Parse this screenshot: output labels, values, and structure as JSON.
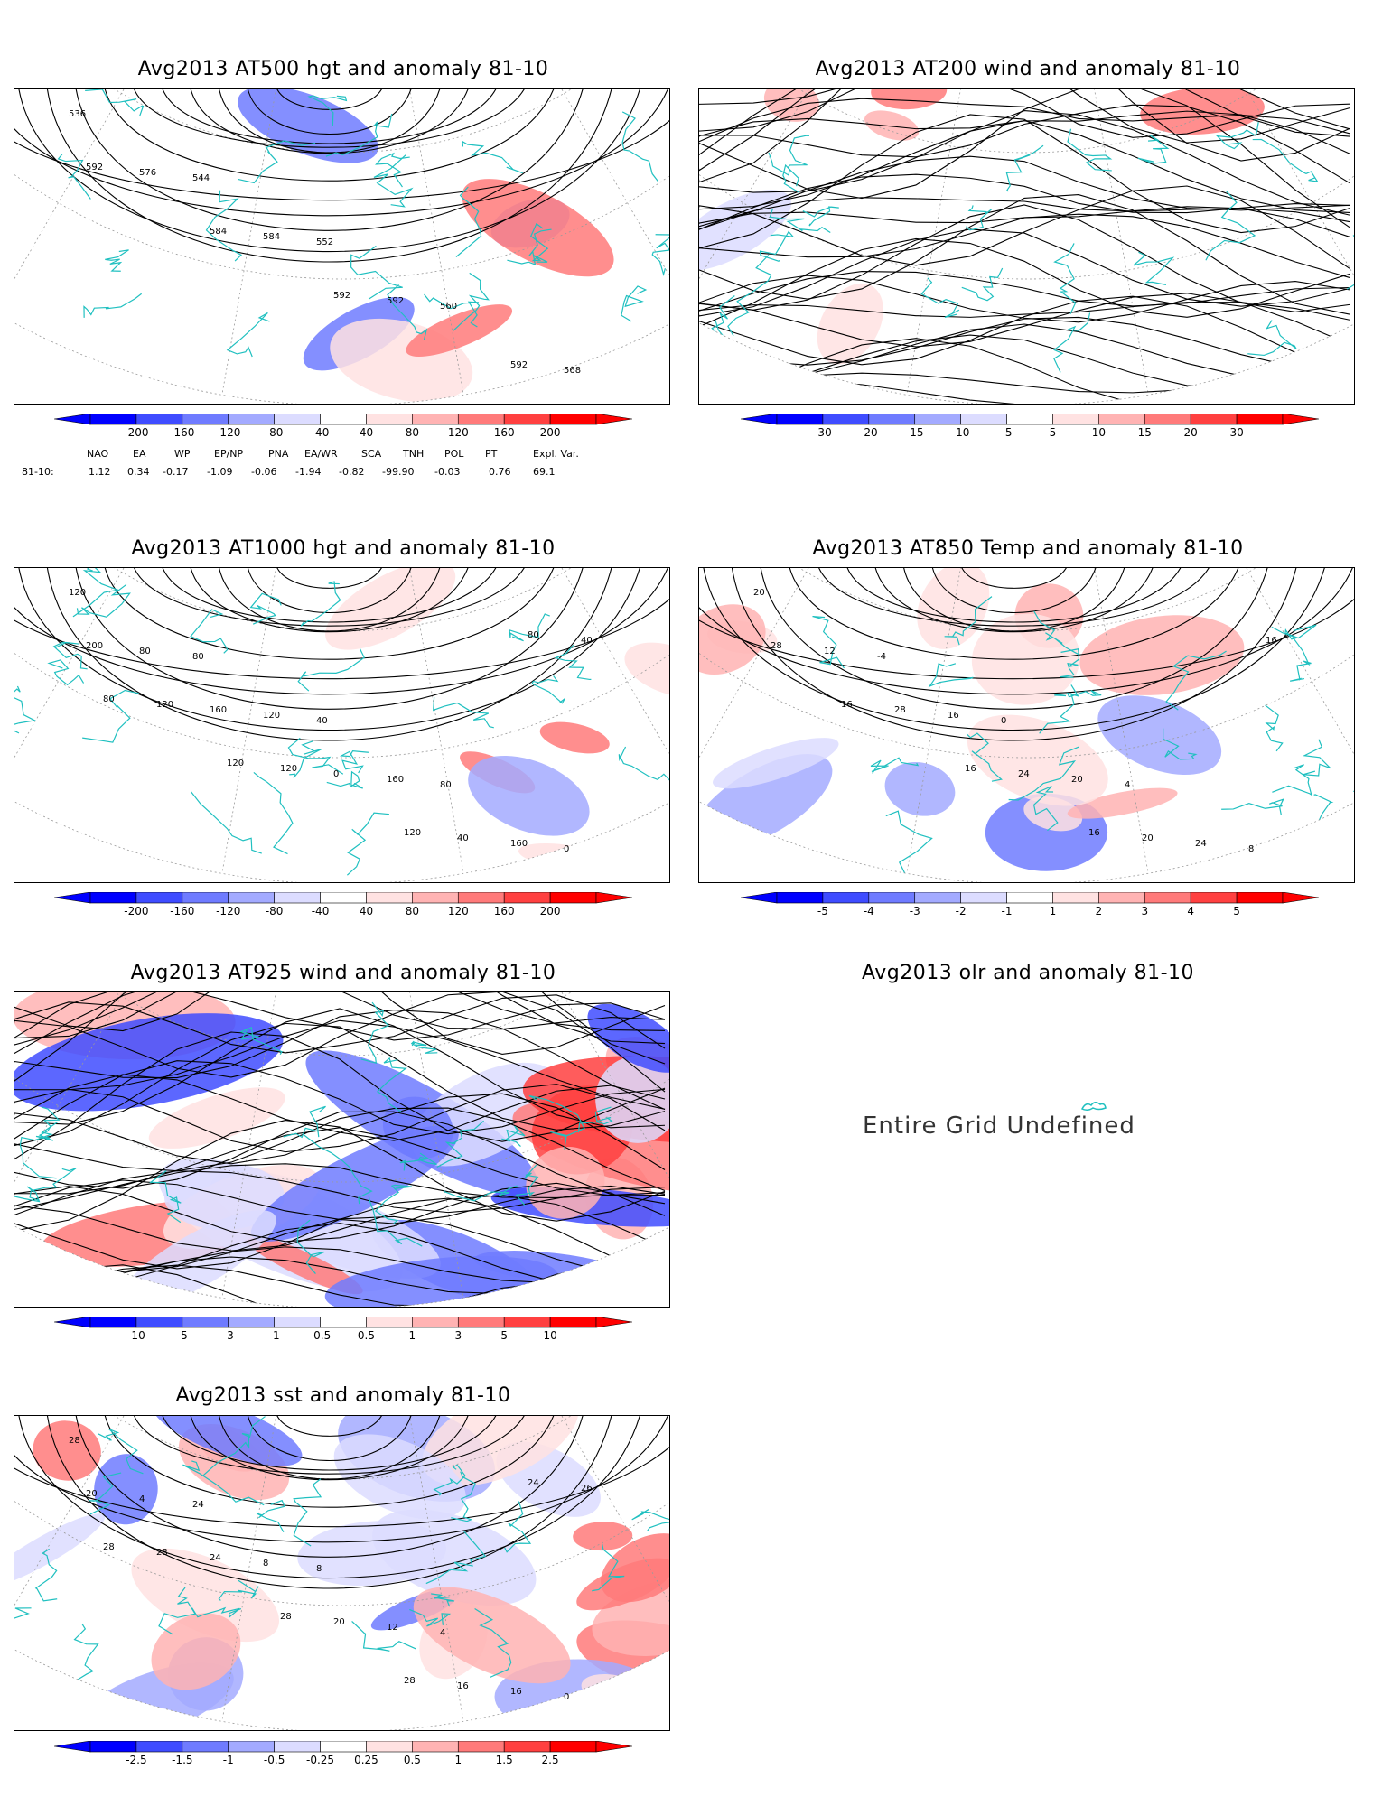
{
  "colors": {
    "blue_scale": [
      "#0000ff",
      "#3f4cff",
      "#6f7bff",
      "#a3aaff",
      "#dcdcff"
    ],
    "red_scale": [
      "#ffe2e2",
      "#ffb3b3",
      "#ff7a7a",
      "#ff4040",
      "#ff0000"
    ],
    "coast": "#20c0c0",
    "contour": "#000000"
  },
  "panels": [
    {
      "title": "Avg2013 AT500 hgt and anomaly 81-10",
      "contour_labels": [
        "536",
        "544",
        "552",
        "560",
        "568",
        "576",
        "584",
        "592",
        "592",
        "592",
        "584",
        "592"
      ],
      "colorbar": [
        "-200",
        "-160",
        "-120",
        "-80",
        "-40",
        "40",
        "80",
        "120",
        "160",
        "200"
      ]
    },
    {
      "title": "Avg2013 AT200 wind and anomaly 81-10",
      "contour_labels": [],
      "colorbar": [
        "-30",
        "-20",
        "-15",
        "-10",
        "-5",
        "5",
        "10",
        "15",
        "20",
        "30"
      ]
    },
    {
      "title": "Avg2013 AT1000 hgt and anomaly 81-10",
      "contour_labels": [
        "120",
        "80",
        "40",
        "80",
        "0",
        "80",
        "120",
        "160",
        "160",
        "200",
        "160",
        "0",
        "40",
        "40",
        "120",
        "120",
        "120",
        "80",
        "80",
        "120"
      ],
      "colorbar": [
        "-200",
        "-160",
        "-120",
        "-80",
        "-40",
        "40",
        "80",
        "120",
        "160",
        "200"
      ]
    },
    {
      "title": "Avg2013 AT850 Temp and anomaly 81-10",
      "contour_labels": [
        "20",
        "-4",
        "0",
        "4",
        "8",
        "12",
        "16",
        "20",
        "24",
        "28",
        "28",
        "24",
        "20",
        "16",
        "16",
        "16",
        "16"
      ],
      "colorbar": [
        "-5",
        "-4",
        "-3",
        "-2",
        "-1",
        "1",
        "2",
        "3",
        "4",
        "5"
      ]
    },
    {
      "title": "Avg2013 AT925 wind and anomaly 81-10",
      "contour_labels": [],
      "colorbar": [
        "-10",
        "-5",
        "-3",
        "-1",
        "-0.5",
        "0.5",
        "1",
        "3",
        "5",
        "10"
      ]
    },
    {
      "title": "Avg2013 olr and anomaly 81-10",
      "message": "Entire Grid Undefined"
    },
    {
      "title": "Avg2013 sst and anomaly 81-10",
      "contour_labels": [
        "28",
        "24",
        "8",
        "4",
        "0",
        "4",
        "8",
        "12",
        "16",
        "20",
        "24",
        "20",
        "16",
        "26",
        "28",
        "28",
        "28",
        "24",
        "28"
      ],
      "colorbar": [
        "-2.5",
        "-1.5",
        "-1",
        "-0.5",
        "-0.25",
        "0.25",
        "0.5",
        "1",
        "1.5",
        "2.5"
      ]
    }
  ],
  "teleconnections": {
    "headers": [
      "NAO",
      "EA",
      "WP",
      "EP/NP",
      "PNA",
      "EA/WR",
      "SCA",
      "TNH",
      "POL",
      "PT",
      "Expl. Var."
    ],
    "row_label": "81-10:",
    "values": [
      "1.12",
      "0.34",
      "-0.17",
      "-1.09",
      "-0.06",
      "-1.94",
      "-0.82",
      "-99.90",
      "-0.03",
      "0.76",
      "69.1"
    ]
  }
}
